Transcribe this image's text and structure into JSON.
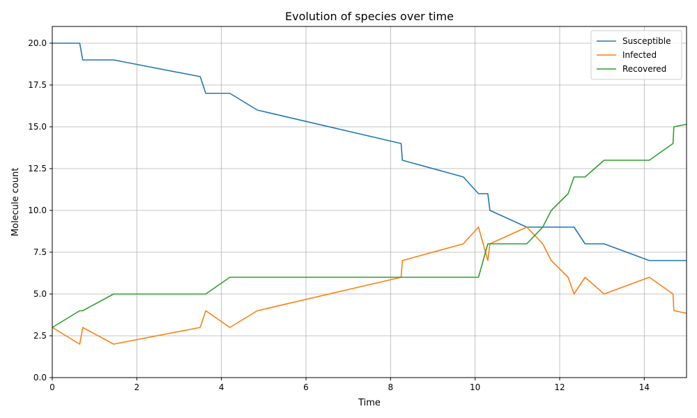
{
  "chart_data": {
    "type": "line",
    "title": "Evolution of species over time",
    "xlabel": "Time",
    "ylabel": "Molecule count",
    "xlim": [
      0,
      15
    ],
    "ylim": [
      0,
      21
    ],
    "xticks": [
      0,
      2,
      4,
      6,
      8,
      10,
      12,
      14
    ],
    "xtick_labels": [
      "0",
      "2",
      "4",
      "6",
      "8",
      "10",
      "12",
      "14"
    ],
    "yticks": [
      0,
      2.5,
      5,
      7.5,
      10,
      12.5,
      15,
      17.5,
      20
    ],
    "ytick_labels": [
      "0.0",
      "2.5",
      "5.0",
      "7.5",
      "10.0",
      "12.5",
      "15.0",
      "17.5",
      "20.0"
    ],
    "grid": true,
    "legend_position": "top-right",
    "series": [
      {
        "name": "Susceptible",
        "color": "#1f77b4",
        "points": [
          [
            0,
            20
          ],
          [
            0.65,
            20
          ],
          [
            0.72,
            19
          ],
          [
            1.45,
            19
          ],
          [
            3.5,
            18
          ],
          [
            3.63,
            17
          ],
          [
            4.2,
            17
          ],
          [
            4.85,
            16
          ],
          [
            8.25,
            14
          ],
          [
            8.28,
            13
          ],
          [
            9.72,
            12
          ],
          [
            10.08,
            11
          ],
          [
            10.3,
            11
          ],
          [
            10.35,
            10
          ],
          [
            11.22,
            9
          ],
          [
            11.6,
            9
          ],
          [
            12.34,
            9
          ],
          [
            12.6,
            8
          ],
          [
            13.05,
            8
          ],
          [
            14.12,
            7
          ],
          [
            15,
            7
          ]
        ]
      },
      {
        "name": "Infected",
        "color": "#ff7f0e",
        "points": [
          [
            0,
            3
          ],
          [
            0.65,
            2
          ],
          [
            0.72,
            3
          ],
          [
            1.45,
            2
          ],
          [
            3.5,
            3
          ],
          [
            3.63,
            4
          ],
          [
            4.2,
            3
          ],
          [
            4.85,
            4
          ],
          [
            8.25,
            6
          ],
          [
            8.28,
            7
          ],
          [
            9.72,
            8
          ],
          [
            10.08,
            9
          ],
          [
            10.3,
            7
          ],
          [
            10.35,
            8
          ],
          [
            11.22,
            9
          ],
          [
            11.6,
            8
          ],
          [
            11.8,
            7
          ],
          [
            12.2,
            6
          ],
          [
            12.34,
            5
          ],
          [
            12.6,
            6
          ],
          [
            13.05,
            5
          ],
          [
            14.12,
            6
          ],
          [
            14.68,
            5
          ],
          [
            14.7,
            4
          ],
          [
            15,
            3.85
          ]
        ]
      },
      {
        "name": "Recovered",
        "color": "#2ca02c",
        "points": [
          [
            0,
            3
          ],
          [
            0.65,
            4
          ],
          [
            0.72,
            4
          ],
          [
            1.45,
            5
          ],
          [
            3.63,
            5
          ],
          [
            4.2,
            6
          ],
          [
            10.08,
            6
          ],
          [
            10.3,
            8
          ],
          [
            11.22,
            8
          ],
          [
            11.6,
            9
          ],
          [
            11.8,
            10
          ],
          [
            12.2,
            11
          ],
          [
            12.34,
            12
          ],
          [
            12.6,
            12
          ],
          [
            13.05,
            13
          ],
          [
            14.12,
            13
          ],
          [
            14.68,
            14
          ],
          [
            14.7,
            15
          ],
          [
            15,
            15.15
          ]
        ]
      }
    ]
  }
}
